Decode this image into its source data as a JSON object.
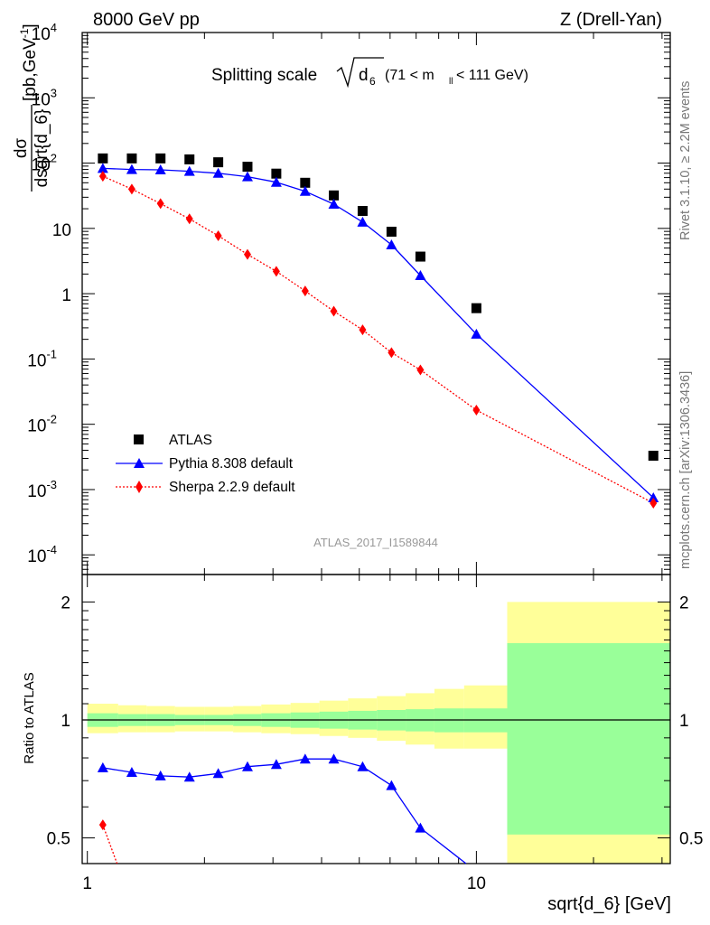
{
  "header": {
    "left": "8000 GeV pp",
    "right": "Z (Drell-Yan)"
  },
  "side": {
    "rivet": "Rivet 3.1.10, ≥ 2.2M events",
    "mcplots": "mcplots.cern.ch [arXiv:1306.3436]"
  },
  "chart_data": [
    {
      "type": "scatter",
      "panel": "main",
      "title": "Splitting scale √d₆ (71 < mₗₗ < 111 GeV)",
      "title_main": "Splitting scale",
      "title_sym": "d",
      "title_sub": "6",
      "title_cut": "(71 < m",
      "title_cut_sub": "ll",
      "title_cut_end": " < 111 GeV)",
      "ylabel": "dσ/dsqrt{d_6} [pb,GeV⁻¹]",
      "ylabel_num": "dσ",
      "ylabel_den": "dsqrt{d_6}",
      "ylabel_units": "[pb,GeV",
      "ylabel_exp": "-1",
      "ylabel_close": "]",
      "xlabel": "sqrt{d_6} [GeV]",
      "x_log": true,
      "y_log": true,
      "xlim": [
        0.97,
        31.5
      ],
      "ylim": [
        5e-05,
        10000
      ],
      "y_ticks": [
        {
          "v": 0.0001,
          "base": "10",
          "exp": "-4"
        },
        {
          "v": 0.001,
          "base": "10",
          "exp": "-3"
        },
        {
          "v": 0.01,
          "base": "10",
          "exp": "-2"
        },
        {
          "v": 0.1,
          "base": "10",
          "exp": "-1"
        },
        {
          "v": 1,
          "base": "1",
          "exp": ""
        },
        {
          "v": 10,
          "base": "10",
          "exp": ""
        },
        {
          "v": 100,
          "base": "10",
          "exp": "2"
        },
        {
          "v": 1000,
          "base": "10",
          "exp": "3"
        },
        {
          "v": 10000,
          "base": "10",
          "exp": "4"
        }
      ],
      "watermark": "ATLAS_2017_I1589844",
      "legend_position": "lower-left",
      "series": [
        {
          "name": "ATLAS",
          "style": "marker-square",
          "color": "#000000",
          "x": [
            1.096,
            1.301,
            1.542,
            1.83,
            2.17,
            2.58,
            3.06,
            3.63,
            4.3,
            5.1,
            6.05,
            7.18,
            10.0,
            28.5
          ],
          "y": [
            118,
            118,
            118,
            114,
            103,
            88,
            69,
            50,
            32,
            18.5,
            8.9,
            3.7,
            0.6,
            0.0033
          ]
        },
        {
          "name": "Pythia 8.308 default",
          "style": "line-triangle",
          "color": "#0000ff",
          "x": [
            1.096,
            1.301,
            1.542,
            1.83,
            2.17,
            2.58,
            3.06,
            3.63,
            4.3,
            5.1,
            6.05,
            7.18,
            10.0,
            28.5
          ],
          "y": [
            83,
            80,
            79,
            75,
            70,
            62,
            51,
            37,
            23.5,
            12.5,
            5.6,
            1.9,
            0.24,
            0.00075
          ]
        },
        {
          "name": "Sherpa 2.2.9 default",
          "style": "dotted-diamond",
          "color": "#ff0000",
          "x": [
            1.096,
            1.301,
            1.542,
            1.83,
            2.17,
            2.58,
            3.06,
            3.63,
            4.3,
            5.1,
            6.05,
            7.18,
            10.0,
            28.5
          ],
          "y": [
            63,
            40,
            24,
            14,
            7.7,
            4.0,
            2.2,
            1.1,
            0.54,
            0.28,
            0.125,
            0.068,
            0.0165,
            0.00062
          ]
        }
      ]
    },
    {
      "type": "line",
      "panel": "ratio",
      "ylabel": "Ratio to ATLAS",
      "xlabel": "sqrt{d_6} [GeV]",
      "x_log": true,
      "xlim": [
        0.97,
        31.5
      ],
      "ylim": [
        0.43,
        2.35
      ],
      "y_ticks": [
        {
          "v": 0.5,
          "label": "0.5"
        },
        {
          "v": 1,
          "label": "1"
        },
        {
          "v": 2,
          "label": "2"
        }
      ],
      "x_ticks": [
        {
          "v": 1,
          "label": "1"
        },
        {
          "v": 10,
          "label": "10"
        }
      ],
      "bands": {
        "edges": [
          1.0,
          1.2,
          1.42,
          1.68,
          2.0,
          2.37,
          2.8,
          3.33,
          3.95,
          4.68,
          5.55,
          6.58,
          7.8,
          9.3,
          12.0,
          31.5
        ],
        "inner": [
          [
            0.96,
            1.04
          ],
          [
            0.965,
            1.035
          ],
          [
            0.965,
            1.035
          ],
          [
            0.97,
            1.03
          ],
          [
            0.97,
            1.03
          ],
          [
            0.965,
            1.035
          ],
          [
            0.96,
            1.04
          ],
          [
            0.955,
            1.045
          ],
          [
            0.95,
            1.05
          ],
          [
            0.945,
            1.055
          ],
          [
            0.94,
            1.06
          ],
          [
            0.935,
            1.065
          ],
          [
            0.93,
            1.07
          ],
          [
            0.93,
            1.07
          ],
          [
            0.51,
            1.57
          ]
        ],
        "outer": [
          [
            0.925,
            1.1
          ],
          [
            0.93,
            1.09
          ],
          [
            0.93,
            1.085
          ],
          [
            0.935,
            1.08
          ],
          [
            0.935,
            1.08
          ],
          [
            0.93,
            1.085
          ],
          [
            0.925,
            1.095
          ],
          [
            0.92,
            1.105
          ],
          [
            0.91,
            1.12
          ],
          [
            0.9,
            1.135
          ],
          [
            0.885,
            1.15
          ],
          [
            0.865,
            1.17
          ],
          [
            0.845,
            1.2
          ],
          [
            0.845,
            1.225
          ],
          [
            0.3,
            2.0
          ]
        ],
        "inner_color": "#99ff99",
        "outer_color": "#ffff99"
      },
      "series": [
        {
          "name": "Pythia 8.308 default",
          "color": "#0000ff",
          "x": [
            1.096,
            1.301,
            1.542,
            1.83,
            2.17,
            2.58,
            3.06,
            3.63,
            4.3,
            5.1,
            6.05,
            7.18,
            10.0
          ],
          "y": [
            0.755,
            0.735,
            0.72,
            0.715,
            0.73,
            0.76,
            0.77,
            0.795,
            0.795,
            0.76,
            0.68,
            0.53,
            0.41
          ]
        },
        {
          "name": "Sherpa 2.2.9 default",
          "color": "#ff0000",
          "x": [
            1.096,
            1.301
          ],
          "y": [
            0.54,
            0.34
          ]
        }
      ]
    }
  ]
}
